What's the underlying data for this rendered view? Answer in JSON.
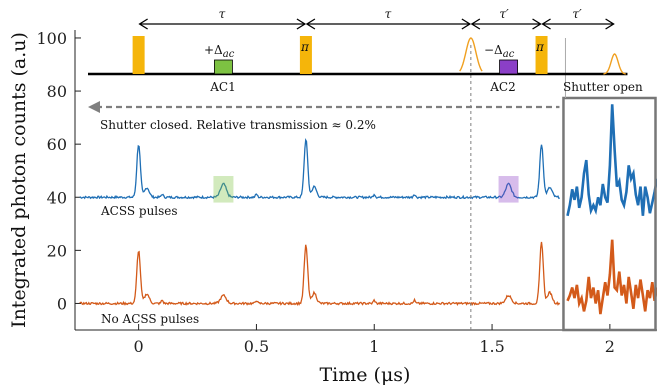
{
  "chart_data": {
    "type": "line",
    "xlabel": "Time (μs)",
    "ylabel": "Integrated photon counts (a.u)",
    "xlim": [
      -0.27,
      2.2
    ],
    "ylim": [
      -10,
      103
    ],
    "xticks": [
      0,
      0.5,
      1,
      1.5,
      2
    ],
    "xtick_labels": [
      "0",
      "0.5",
      "1",
      "1.5",
      "2"
    ],
    "yticks": [
      0,
      20,
      40,
      60,
      80,
      100
    ],
    "ytick_labels": [
      "0",
      "20",
      "40",
      "60",
      "80",
      "100"
    ],
    "grid": false,
    "series": [
      {
        "label": "ACSS pulses",
        "color": "#1f6fb5",
        "baseline": 40,
        "peaks": [
          {
            "x": 0.0,
            "y": 60
          },
          {
            "x": 0.36,
            "y": 45
          },
          {
            "x": 0.71,
            "y": 62
          },
          {
            "x": 1.57,
            "y": 45
          },
          {
            "x": 1.71,
            "y": 60
          }
        ],
        "shutter_open_points": [
          [
            1.82,
            33
          ],
          [
            1.83,
            37
          ],
          [
            1.84,
            43
          ],
          [
            1.85,
            39
          ],
          [
            1.86,
            44
          ],
          [
            1.87,
            36
          ],
          [
            1.88,
            40
          ],
          [
            1.89,
            49
          ],
          [
            1.9,
            54
          ],
          [
            1.91,
            41
          ],
          [
            1.92,
            35
          ],
          [
            1.93,
            37
          ],
          [
            1.94,
            35
          ],
          [
            1.95,
            40
          ],
          [
            1.96,
            37
          ],
          [
            1.97,
            45
          ],
          [
            1.98,
            40
          ],
          [
            1.99,
            38
          ],
          [
            2.0,
            52
          ],
          [
            2.01,
            75
          ],
          [
            2.02,
            58
          ],
          [
            2.03,
            44
          ],
          [
            2.04,
            46
          ],
          [
            2.05,
            39
          ],
          [
            2.06,
            37
          ],
          [
            2.07,
            42
          ],
          [
            2.08,
            52
          ],
          [
            2.09,
            47
          ],
          [
            2.1,
            49
          ],
          [
            2.11,
            41
          ],
          [
            2.12,
            37
          ],
          [
            2.13,
            44
          ],
          [
            2.14,
            33
          ],
          [
            2.15,
            44
          ],
          [
            2.16,
            40
          ],
          [
            2.17,
            34
          ],
          [
            2.18,
            38
          ],
          [
            2.19,
            42
          ],
          [
            2.2,
            47
          ]
        ]
      },
      {
        "label": "No ACSS pulses",
        "color": "#d35a1a",
        "baseline": 0,
        "peaks": [
          {
            "x": 0.0,
            "y": 20
          },
          {
            "x": 0.36,
            "y": 3
          },
          {
            "x": 0.71,
            "y": 22
          },
          {
            "x": 1.57,
            "y": 3
          },
          {
            "x": 1.71,
            "y": 23
          }
        ],
        "shutter_open_points": [
          [
            1.82,
            1
          ],
          [
            1.83,
            3
          ],
          [
            1.84,
            6
          ],
          [
            1.85,
            2
          ],
          [
            1.86,
            7
          ],
          [
            1.87,
            0
          ],
          [
            1.88,
            2
          ],
          [
            1.89,
            -3
          ],
          [
            1.9,
            1
          ],
          [
            1.91,
            10
          ],
          [
            1.92,
            2
          ],
          [
            1.93,
            6
          ],
          [
            1.94,
            0
          ],
          [
            1.95,
            5
          ],
          [
            1.96,
            -4
          ],
          [
            1.97,
            2
          ],
          [
            1.98,
            8
          ],
          [
            1.99,
            3
          ],
          [
            2.0,
            11
          ],
          [
            2.01,
            24
          ],
          [
            2.02,
            6
          ],
          [
            2.03,
            5
          ],
          [
            2.04,
            12
          ],
          [
            2.05,
            3
          ],
          [
            2.06,
            7
          ],
          [
            2.07,
            0
          ],
          [
            2.08,
            10
          ],
          [
            2.09,
            4
          ],
          [
            2.1,
            -2
          ],
          [
            2.11,
            7
          ],
          [
            2.12,
            2
          ],
          [
            2.13,
            9
          ],
          [
            2.14,
            3
          ],
          [
            2.15,
            -3
          ],
          [
            2.16,
            5
          ],
          [
            2.17,
            2
          ],
          [
            2.18,
            8
          ],
          [
            2.19,
            1
          ],
          [
            2.2,
            6
          ]
        ]
      }
    ],
    "annotations": {
      "shutter_closed": "Shutter closed. Relative transmission ≈ 0.2%",
      "shutter_open": "Shutter open",
      "ac1": "AC1",
      "ac2": "AC2",
      "plus_delta": "+Δ",
      "minus_delta": "−Δ",
      "delta_subscript": "ac",
      "pi": "π",
      "tau": "τ",
      "tau_prime": "τ′",
      "acss_pulses": "ACSS pulses",
      "no_acss_pulses": "No ACSS pulses"
    },
    "pulse_sequence": {
      "pi_pulses": [
        0.0,
        0.71,
        1.71
      ],
      "ac_pulses": [
        {
          "label": "AC1",
          "x": 0.36,
          "color": "#7dc242"
        },
        {
          "label": "AC2",
          "x": 1.57,
          "color": "#8b3fc7"
        }
      ],
      "readout_gaussians": [
        1.41,
        2.02
      ],
      "tau_arrows": [
        [
          0.0,
          0.71
        ],
        [
          0.71,
          1.41
        ],
        [
          1.41,
          1.71
        ],
        [
          1.71,
          2.02
        ]
      ],
      "dashed_marker_x": 1.41,
      "shutter_open_marker_x": 1.82
    },
    "colors": {
      "pi_pulse": "#f5b50a",
      "axis": "#222222",
      "dashed": "#7f7f7f",
      "shutter_box": "#777777"
    }
  }
}
